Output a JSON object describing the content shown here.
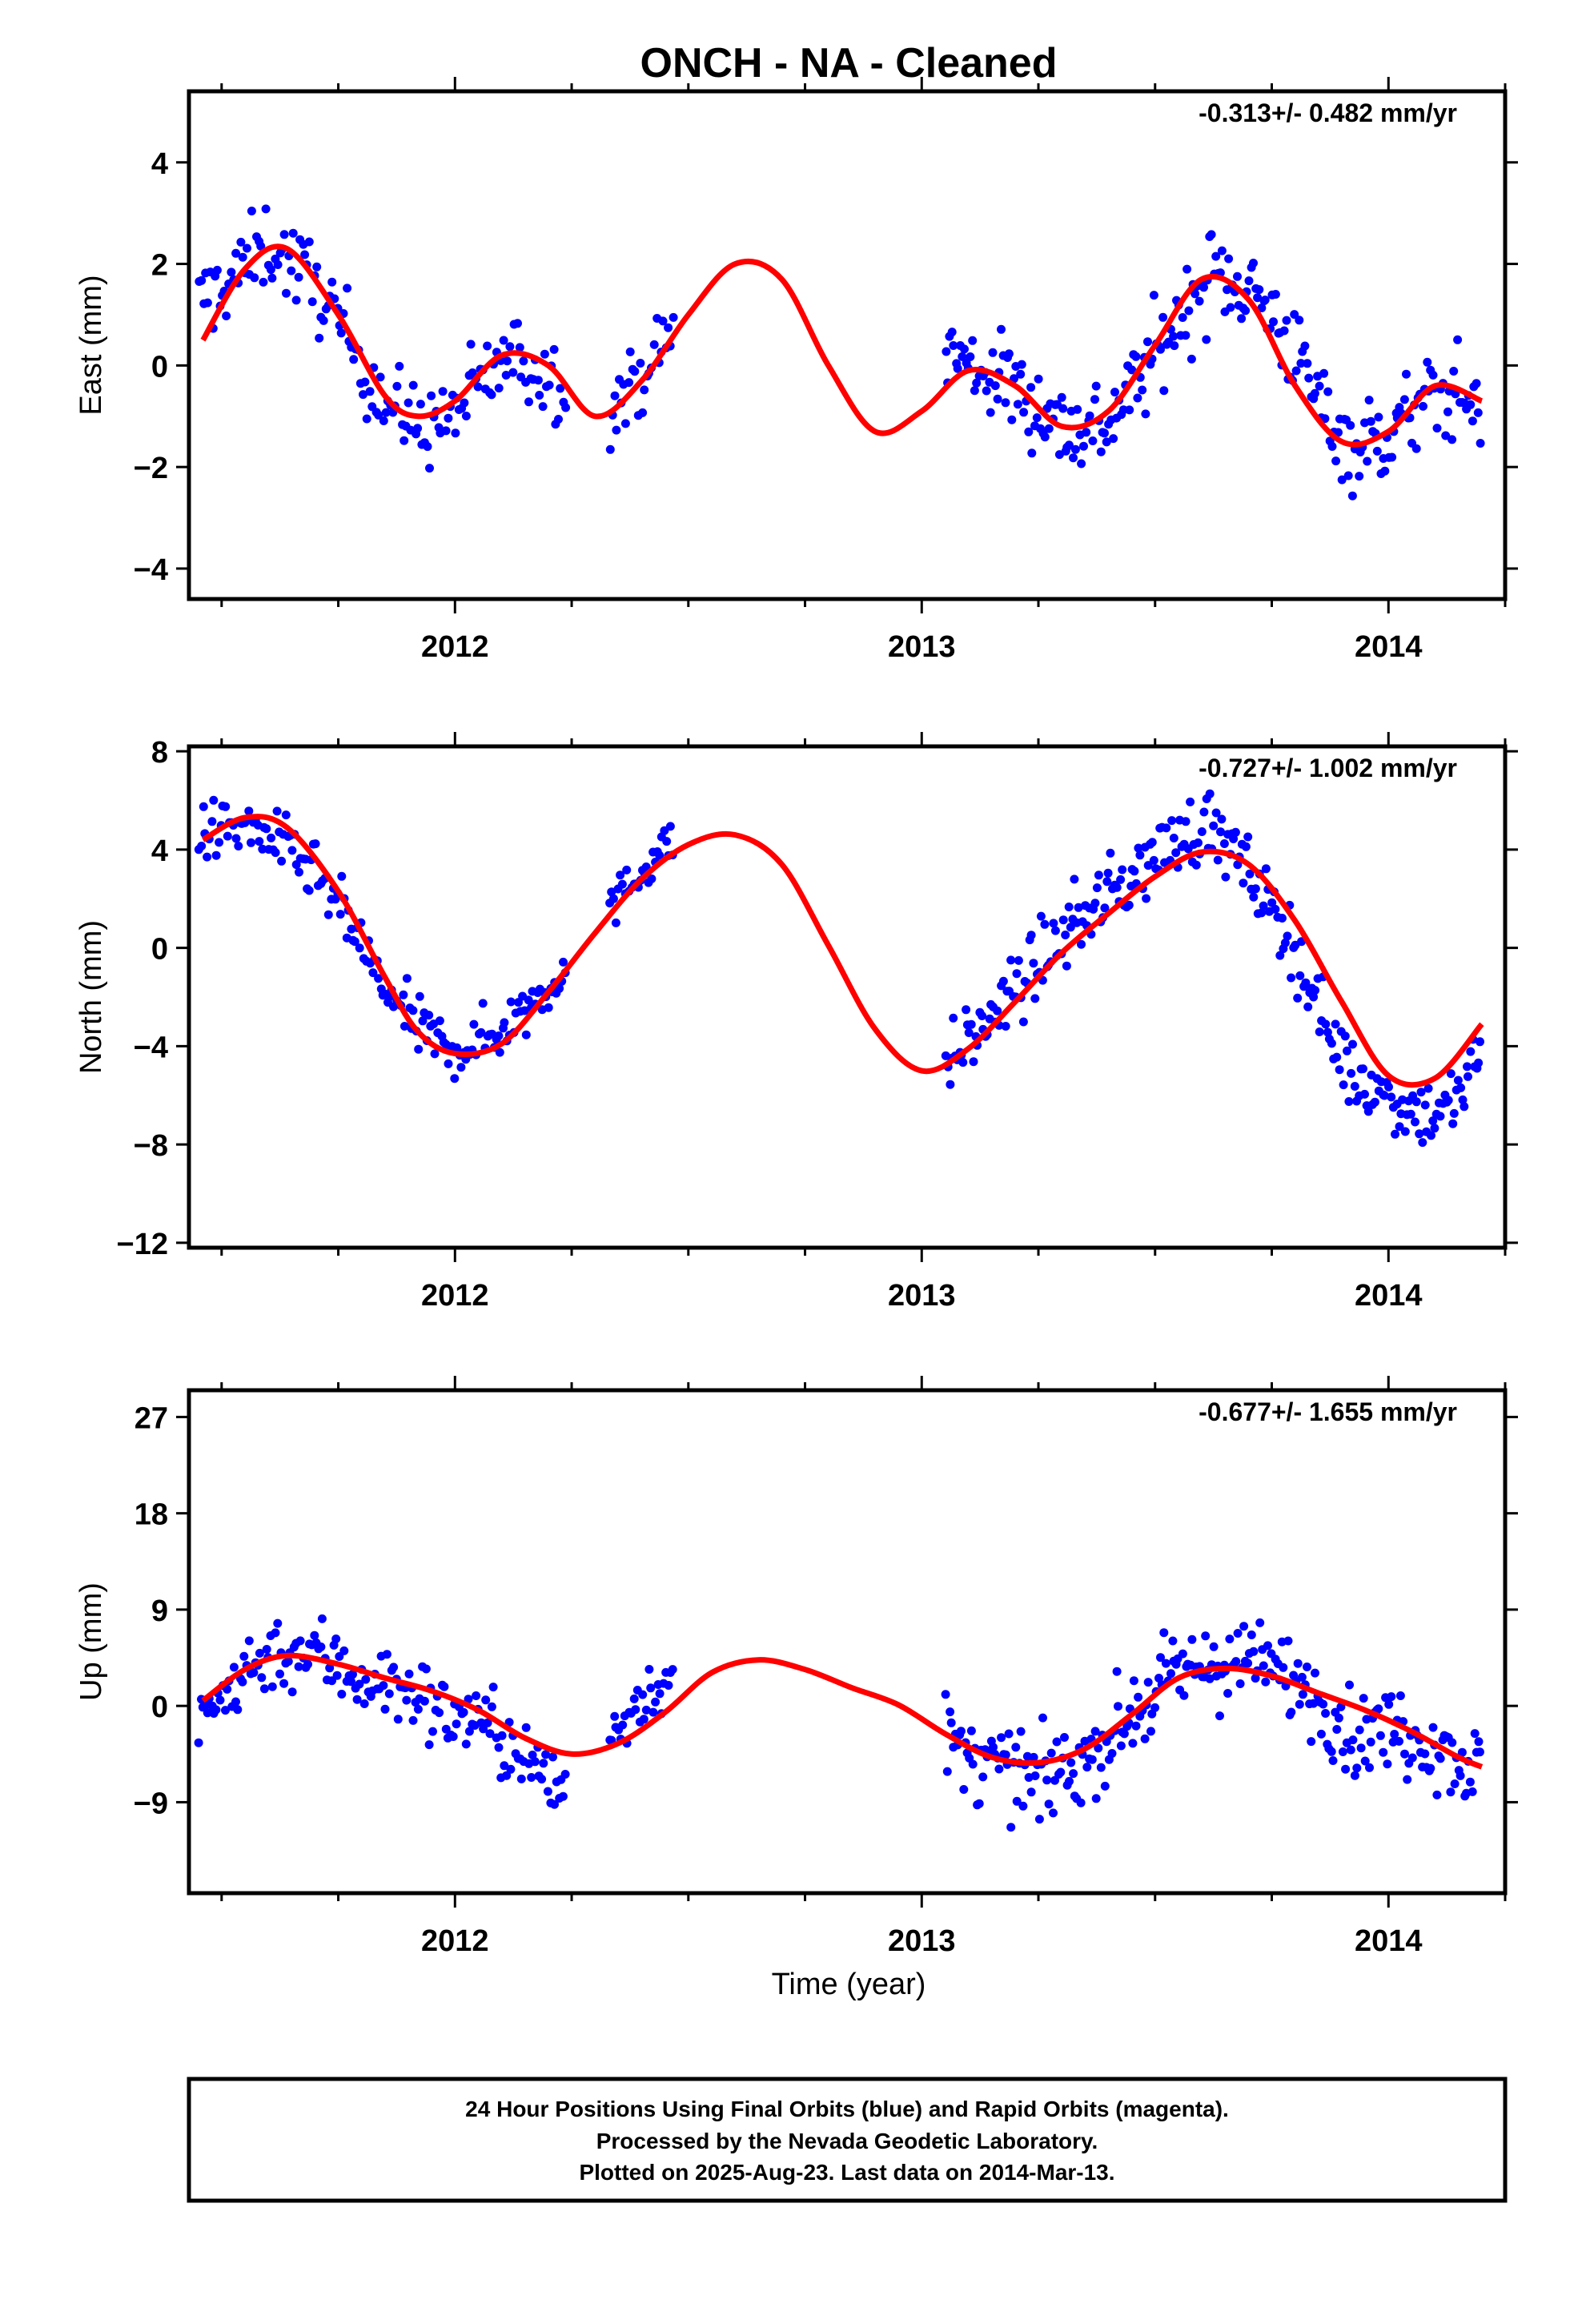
{
  "title": "ONCH  - NA - Cleaned",
  "xlabel": "Time (year)",
  "x_ticks": [
    2012,
    2013,
    2014
  ],
  "colors": {
    "points": "#0000ff",
    "fit": "#ff0000",
    "axis": "#000000"
  },
  "footer": {
    "line1": "24 Hour Positions Using Final Orbits (blue) and Rapid Orbits (magenta).",
    "line2": "Processed by the Nevada Geodetic Laboratory.",
    "line3": "Plotted on 2025-Aug-23. Last data on 2014-Mar-13."
  },
  "chart_data": [
    {
      "type": "scatter",
      "component": "east",
      "ylabel": "East (mm)",
      "rate": "-0.313+/- 0.482 mm/yr",
      "xlim": [
        2011.43,
        2014.25
      ],
      "ylim": [
        -4.6,
        5.4
      ],
      "yticks": [
        -4,
        -2,
        0,
        2,
        4
      ],
      "fit": {
        "name": "",
        "x": [
          2011.46,
          2011.55,
          2011.64,
          2011.75,
          2011.85,
          2011.92,
          2012.0,
          2012.1,
          2012.2,
          2012.3,
          2012.4,
          2012.5,
          2012.6,
          2012.7,
          2012.8,
          2012.9,
          2013.0,
          2013.1,
          2013.2,
          2013.3,
          2013.4,
          2013.5,
          2013.6,
          2013.7,
          2013.8,
          2013.9,
          2014.0,
          2014.1,
          2014.2
        ],
        "y": [
          0.5,
          1.9,
          2.3,
          1.0,
          -0.6,
          -1.0,
          -0.7,
          0.2,
          0.0,
          -1.0,
          -0.3,
          1.0,
          2.0,
          1.7,
          0.0,
          -1.3,
          -0.9,
          -0.1,
          -0.4,
          -1.2,
          -0.9,
          0.4,
          1.7,
          1.3,
          -0.4,
          -1.5,
          -1.3,
          -0.4,
          -0.7
        ]
      },
      "scatter_groups": [
        {
          "x": [
            2011.45,
            2011.52,
            2011.6,
            2011.7,
            2011.78,
            2011.85,
            2011.92,
            2011.98,
            2012.05,
            2012.12,
            2012.2,
            2012.24
          ],
          "y": [
            1.2,
            1.7,
            2.4,
            1.6,
            0.4,
            -0.7,
            -1.2,
            -1.1,
            -0.4,
            0.2,
            -0.2,
            -0.4
          ],
          "spread": 1.1,
          "n": 160
        },
        {
          "x": [
            2012.33,
            2012.4,
            2012.47
          ],
          "y": [
            -0.9,
            -0.2,
            0.7
          ],
          "spread": 0.9,
          "n": 28
        },
        {
          "x": [
            2013.05,
            2013.1,
            2013.18,
            2013.25,
            2013.32,
            2013.4,
            2013.47,
            2013.55,
            2013.62,
            2013.7,
            2013.78,
            2013.85,
            2013.92,
            2014.0,
            2014.08,
            2014.15,
            2014.2
          ],
          "y": [
            0.4,
            0.0,
            -0.3,
            -0.8,
            -1.3,
            -1.1,
            -0.2,
            0.9,
            1.8,
            1.6,
            0.6,
            -0.7,
            -1.6,
            -1.4,
            -0.7,
            -0.5,
            -0.9
          ],
          "spread": 1.2,
          "n": 260
        }
      ]
    },
    {
      "type": "scatter",
      "component": "north",
      "ylabel": "North (mm)",
      "rate": "-0.727+/- 1.002 mm/yr",
      "xlim": [
        2011.43,
        2014.25
      ],
      "ylim": [
        -12.2,
        8.2
      ],
      "yticks": [
        -12,
        -8,
        -4,
        0,
        4,
        8
      ],
      "fit": {
        "name": "",
        "x": [
          2011.46,
          2011.55,
          2011.64,
          2011.75,
          2011.85,
          2011.92,
          2012.0,
          2012.1,
          2012.2,
          2012.3,
          2012.4,
          2012.5,
          2012.6,
          2012.7,
          2012.8,
          2012.9,
          2013.0,
          2013.1,
          2013.2,
          2013.3,
          2013.4,
          2013.5,
          2013.6,
          2013.7,
          2013.8,
          2013.9,
          2014.0,
          2014.1,
          2014.2
        ],
        "y": [
          4.4,
          5.3,
          4.9,
          2.3,
          -1.2,
          -3.4,
          -4.3,
          -3.9,
          -1.8,
          0.6,
          2.8,
          4.2,
          4.6,
          3.4,
          0.1,
          -3.3,
          -5.0,
          -4.1,
          -2.2,
          -0.2,
          1.4,
          2.9,
          3.9,
          3.4,
          1.1,
          -2.2,
          -5.2,
          -5.3,
          -3.1
        ]
      },
      "scatter_groups": [
        {
          "x": [
            2011.45,
            2011.52,
            2011.6,
            2011.7,
            2011.78,
            2011.85,
            2011.92,
            2011.98,
            2012.05,
            2012.12,
            2012.2,
            2012.24
          ],
          "y": [
            4.5,
            5.0,
            4.6,
            3.0,
            0.8,
            -1.8,
            -3.2,
            -4.1,
            -3.9,
            -3.0,
            -1.5,
            -0.5
          ],
          "spread": 1.6,
          "n": 170
        },
        {
          "x": [
            2012.33,
            2012.4,
            2012.47
          ],
          "y": [
            1.5,
            3.2,
            4.5
          ],
          "spread": 1.2,
          "n": 30
        },
        {
          "x": [
            2013.05,
            2013.1,
            2013.18,
            2013.25,
            2013.32,
            2013.4,
            2013.47,
            2013.55,
            2013.62,
            2013.7,
            2013.78,
            2013.85,
            2013.92,
            2014.0,
            2014.08,
            2014.15,
            2014.2
          ],
          "y": [
            -4.8,
            -3.8,
            -2.2,
            -0.6,
            0.9,
            2.2,
            3.2,
            4.5,
            5.0,
            3.0,
            0.8,
            -2.4,
            -5.2,
            -6.0,
            -6.8,
            -6.2,
            -4.0
          ],
          "spread": 1.9,
          "n": 270
        }
      ]
    },
    {
      "type": "scatter",
      "component": "up",
      "ylabel": "Up (mm)",
      "rate": "-0.677+/- 1.655 mm/yr",
      "xlim": [
        2011.43,
        2014.25
      ],
      "ylim": [
        -17.5,
        29.5
      ],
      "yticks": [
        -9,
        0,
        9,
        18,
        27
      ],
      "fit": {
        "name": "",
        "x": [
          2011.46,
          2011.55,
          2011.64,
          2011.75,
          2011.85,
          2011.95,
          2012.05,
          2012.15,
          2012.25,
          2012.35,
          2012.45,
          2012.55,
          2012.65,
          2012.75,
          2012.85,
          2012.95,
          2013.05,
          2013.15,
          2013.25,
          2013.35,
          2013.45,
          2013.55,
          2013.65,
          2013.75,
          2013.85,
          2013.95,
          2014.05,
          2014.15,
          2014.2
        ],
        "y": [
          0.5,
          3.4,
          4.7,
          3.9,
          2.6,
          1.4,
          -0.4,
          -3.0,
          -4.5,
          -3.5,
          -0.6,
          3.1,
          4.3,
          3.4,
          1.7,
          0.1,
          -2.6,
          -4.8,
          -5.3,
          -4.0,
          -0.8,
          2.6,
          3.5,
          2.8,
          1.2,
          -0.4,
          -2.4,
          -4.8,
          -5.7
        ]
      },
      "scatter_groups": [
        {
          "x": [
            2011.45,
            2011.52,
            2011.6,
            2011.7,
            2011.78,
            2011.85,
            2011.92,
            2011.98,
            2012.05,
            2012.12,
            2012.2,
            2012.24
          ],
          "y": [
            -2,
            2,
            5,
            5,
            3,
            2,
            1,
            -1,
            -1,
            -4,
            -7,
            -8
          ],
          "spread": 4.8,
          "n": 170
        },
        {
          "x": [
            2012.33,
            2012.4,
            2012.47
          ],
          "y": [
            -3,
            1,
            3
          ],
          "spread": 4.0,
          "n": 30
        },
        {
          "x": [
            2013.05,
            2013.1,
            2013.18,
            2013.25,
            2013.32,
            2013.4,
            2013.47,
            2013.55,
            2013.62,
            2013.7,
            2013.78,
            2013.85,
            2013.92,
            2014.0,
            2014.08,
            2014.15,
            2014.2
          ],
          "y": [
            -3,
            -5,
            -6,
            -7,
            -6,
            -3,
            0,
            3,
            4,
            4,
            3,
            1,
            -3,
            -2,
            -3,
            -5,
            -6
          ],
          "spread": 5.2,
          "n": 270
        }
      ]
    }
  ]
}
